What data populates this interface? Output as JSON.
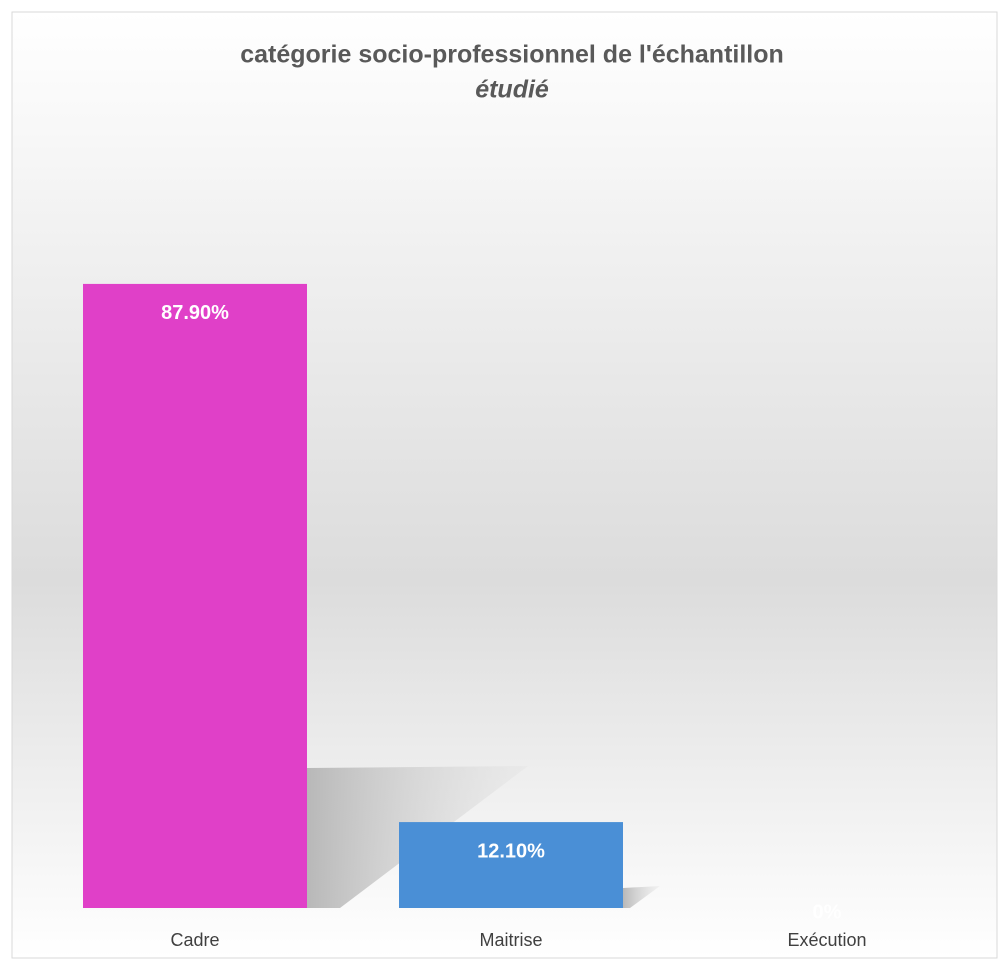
{
  "chart_data": {
    "type": "bar",
    "title": "catégorie socio-professionnel de l'échantillon",
    "subtitle": "étudié",
    "categories": [
      "Cadre",
      "Maitrise",
      "Exécution"
    ],
    "values": [
      87.9,
      12.1,
      0
    ],
    "value_labels": [
      "87.90%",
      "12.10%",
      "0%"
    ],
    "colors": [
      "#e040c8",
      "#4a8fd6",
      "#4a8fd6"
    ],
    "ylim": [
      0,
      100
    ]
  }
}
